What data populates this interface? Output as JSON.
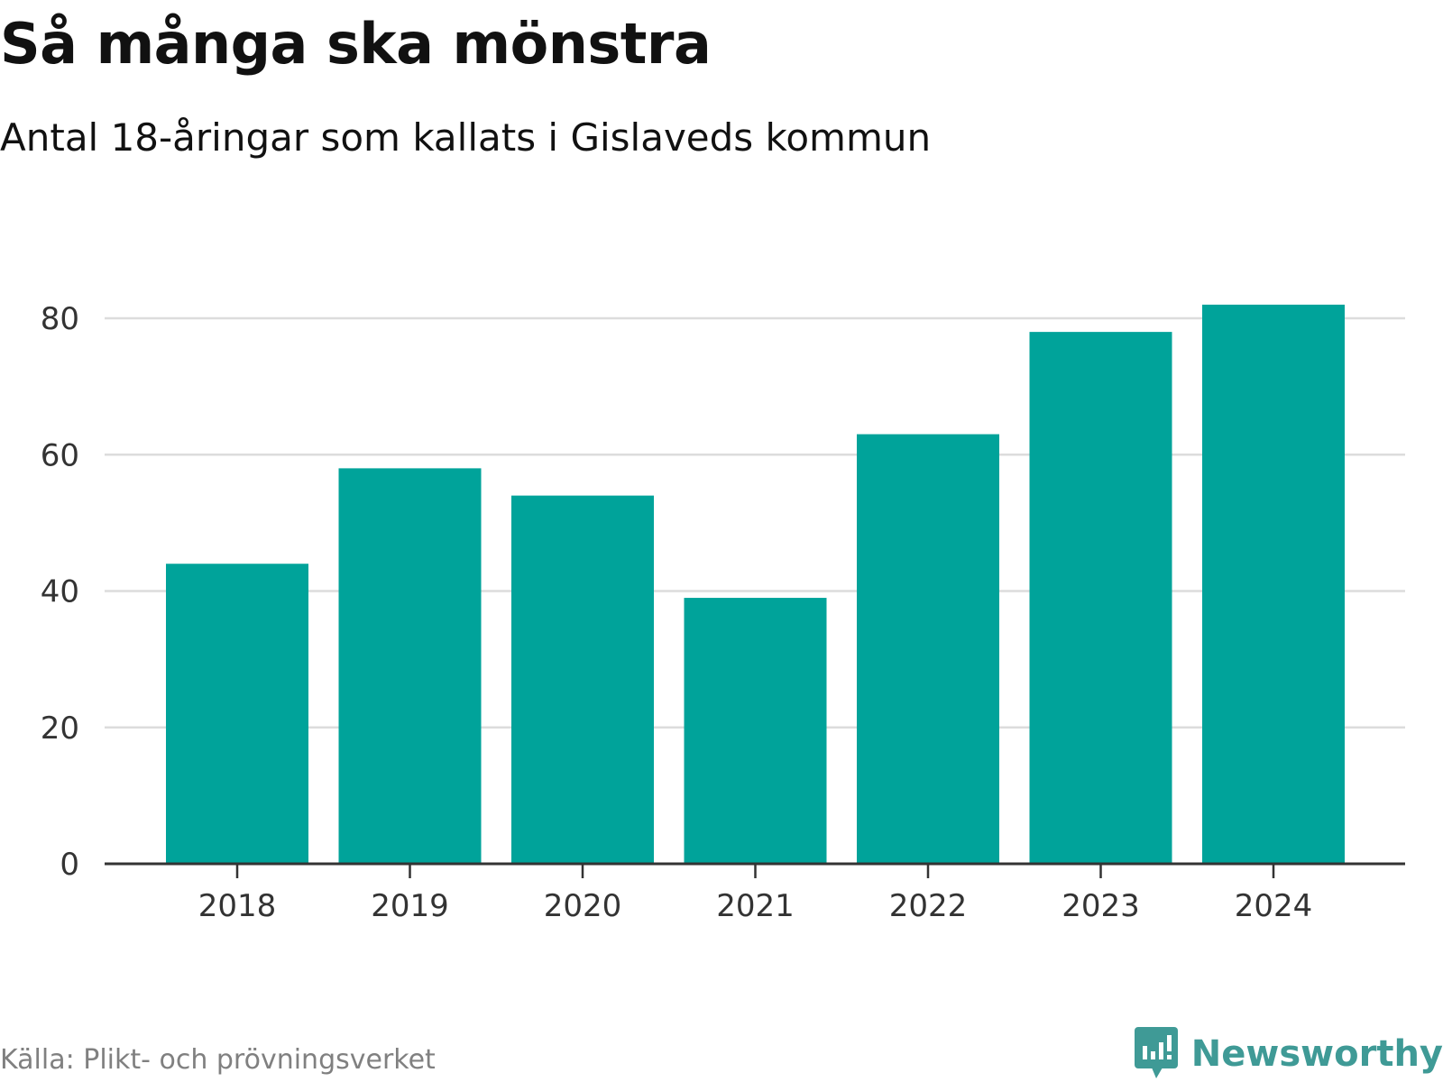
{
  "header": {
    "title": "Så många ska mönstra",
    "subtitle": "Antal 18-åringar som kallats i Gislaveds kommun"
  },
  "footer": {
    "source": "Källa: Plikt- och prövningsverket",
    "brand": "Newsworthy",
    "brand_icon": "newsworthy-logo-icon"
  },
  "colors": {
    "bar": "#00a39a",
    "grid": "#dcdcdc",
    "axis": "#333333",
    "tick_text": "#333333",
    "brand": "#3f9a96",
    "source": "#808080"
  },
  "chart_data": {
    "type": "bar",
    "title": "Så många ska mönstra",
    "subtitle": "Antal 18-åringar som kallats i Gislaveds kommun",
    "categories": [
      "2018",
      "2019",
      "2020",
      "2021",
      "2022",
      "2023",
      "2024"
    ],
    "values": [
      44,
      58,
      54,
      39,
      63,
      78,
      82
    ],
    "xlabel": "",
    "ylabel": "",
    "ylim": [
      0,
      80
    ],
    "yticks": [
      0,
      20,
      40,
      60,
      80
    ],
    "grid": true,
    "legend": "none"
  }
}
